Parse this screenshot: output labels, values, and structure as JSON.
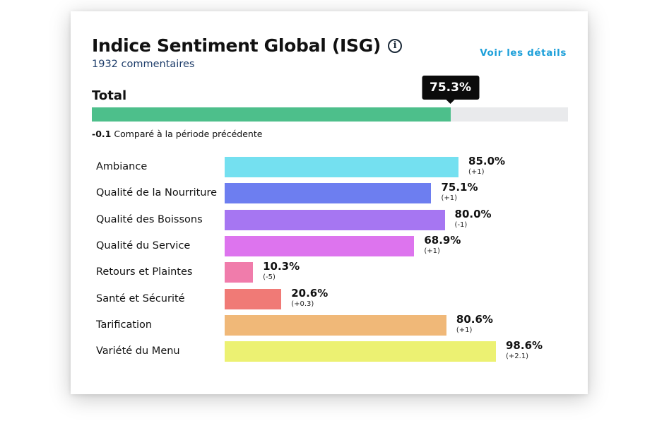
{
  "header": {
    "title": "Indice Sentiment Global (ISG)",
    "info_icon": "info-circle-icon",
    "subtitle": "1932 commentaires",
    "details_link": "Voir les détails"
  },
  "total": {
    "label": "Total",
    "value": 75.3,
    "value_label": "75.3%",
    "bar_color": "#4dbf8b",
    "track_color": "#e9eaec",
    "change": "-0.1",
    "change_text": "Comparé à la période précédente"
  },
  "chart_data": {
    "type": "bar",
    "orientation": "horizontal",
    "xlim": [
      0,
      100
    ],
    "categories": [
      "Ambiance",
      "Qualité de la Nourriture",
      "Qualité des Boissons",
      "Qualité du Service",
      "Retours et Plaintes",
      "Santé et Sécurité",
      "Tarification",
      "Variété du Menu"
    ],
    "values": [
      85.0,
      75.1,
      80.0,
      68.9,
      10.3,
      20.6,
      80.6,
      98.6
    ],
    "value_labels": [
      "85.0%",
      "75.1%",
      "80.0%",
      "68.9%",
      "10.3%",
      "20.6%",
      "80.6%",
      "98.6%"
    ],
    "changes": [
      "(+1)",
      "(+1)",
      "(-1)",
      "(+1)",
      "(-5)",
      "(+0.3)",
      "(+1)",
      "(+2.1)"
    ],
    "colors": [
      "#74e0f0",
      "#6d7ef0",
      "#a676f2",
      "#dd74ee",
      "#f07cab",
      "#f07a76",
      "#f0b878",
      "#ecf172"
    ]
  }
}
